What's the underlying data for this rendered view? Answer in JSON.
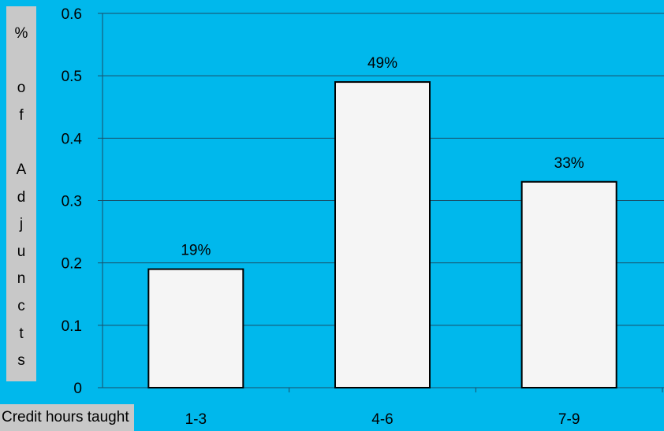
{
  "chart_data": {
    "type": "bar",
    "categories": [
      "1-3",
      "4-6",
      "7-9"
    ],
    "values": [
      0.19,
      0.49,
      0.33
    ],
    "data_labels": [
      "19%",
      "49%",
      "33%"
    ],
    "title": "",
    "xlabel": "Credit hours taught",
    "ylabel": "% of Adjuncts",
    "ylabel_chars": [
      "%",
      "",
      "o",
      "f",
      "",
      "A",
      "d",
      "j",
      "u",
      "n",
      "c",
      "t",
      "s"
    ],
    "ylim": [
      0,
      0.6
    ],
    "yticks": [
      "0",
      "0.1",
      "0.2",
      "0.3",
      "0.4",
      "0.5",
      "0.6"
    ],
    "grid": true,
    "legend": "none",
    "colors": {
      "background": "#00b8ec",
      "bar_fill": "#f5f5f5",
      "bar_stroke": "#000000",
      "grid": "#1a4d66",
      "label_box": "#c8c8c8"
    }
  }
}
